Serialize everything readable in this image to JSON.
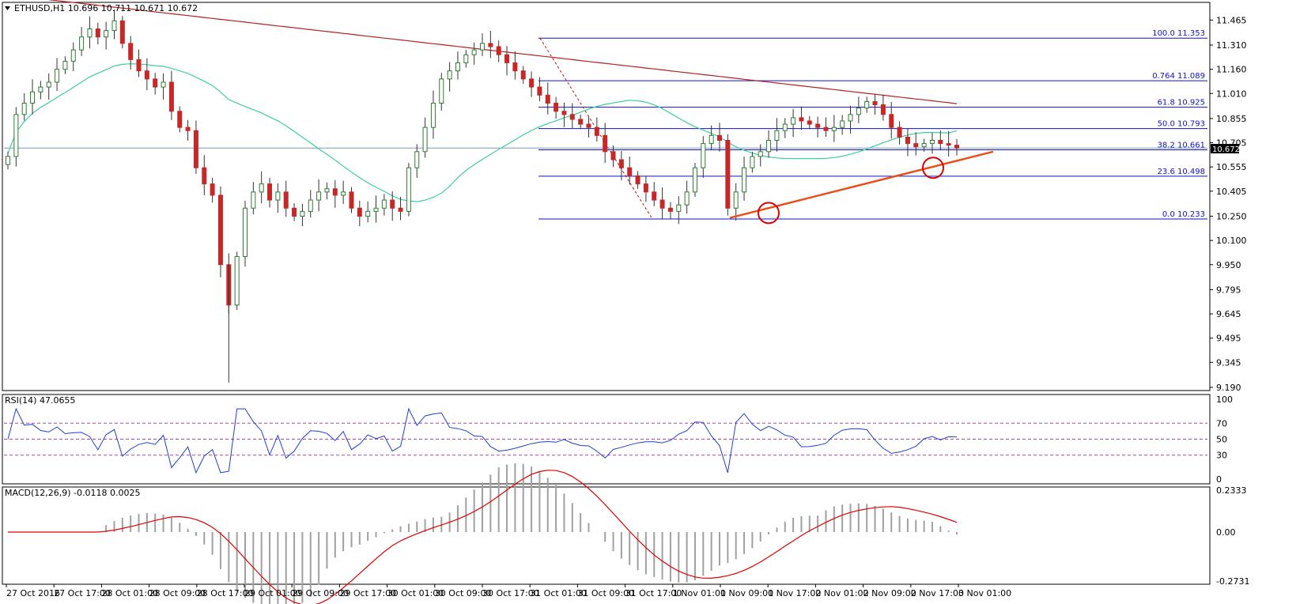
{
  "main": {
    "title": "ETHUSD,H1  10.696 10.711 10.671 10.672",
    "yticks": [
      "11.465",
      "11.310",
      "11.160",
      "11.010",
      "10.855",
      "10.705",
      "10.555",
      "10.405",
      "10.250",
      "10.100",
      "9.950",
      "9.795",
      "9.645",
      "9.495",
      "9.345",
      "9.190"
    ],
    "last_price": "10.672",
    "fib_levels": [
      {
        "label": "100.0",
        "value": "11.353"
      },
      {
        "label": "0.764",
        "value": "11.089"
      },
      {
        "label": "61.8",
        "value": "10.925"
      },
      {
        "label": "50.0",
        "value": "10.793"
      },
      {
        "label": "38.2",
        "value": "10.661"
      },
      {
        "label": "23.6",
        "value": "10.498"
      },
      {
        "label": "0.0",
        "value": "10.233"
      }
    ]
  },
  "rsi": {
    "title": "RSI(14) 47.0655",
    "yticks": [
      "100",
      "70",
      "50",
      "30",
      "0"
    ]
  },
  "macd": {
    "title": "MACD(12,26,9) -0.0118 0.0025",
    "yticks": [
      "0.2333",
      "0.00",
      "-0.2731"
    ]
  },
  "xaxis": {
    "labels": [
      "27 Oct 2016",
      "27 Oct 17:00",
      "28 Oct 01:00",
      "28 Oct 09:00",
      "28 Oct 17:00",
      "29 Oct 01:00",
      "29 Oct 09:00",
      "29 Oct 17:00",
      "30 Oct 01:00",
      "30 Oct 09:00",
      "30 Oct 17:00",
      "31 Oct 01:00",
      "31 Oct 09:00",
      "31 Oct 17:00",
      "1 Nov 01:00",
      "1 Nov 09:00",
      "1 Nov 17:00",
      "2 Nov 01:00",
      "2 Nov 09:00",
      "2 Nov 17:00",
      "3 Nov 01:00"
    ]
  },
  "colors": {
    "bull": "#2e7d32",
    "bear": "#c62828",
    "ma_fast": "#3ecf9a",
    "ma_slow": "#b22222",
    "fib": "#1010c8",
    "trendline": "#e8501a",
    "rsi": "#1f3fd1",
    "macd_signal": "#e00000",
    "macd_hist": "#a0a0a0"
  },
  "chart_data": {
    "type": "candlestick",
    "symbol": "ETHUSD",
    "timeframe": "H1",
    "ylim": [
      9.19,
      11.54
    ],
    "series_close": [
      10.62,
      10.88,
      10.95,
      11.02,
      11.05,
      11.08,
      11.16,
      11.21,
      11.28,
      11.36,
      11.41,
      11.36,
      11.4,
      11.46,
      11.32,
      11.22,
      11.15,
      11.1,
      11.05,
      11.08,
      10.9,
      10.8,
      10.78,
      10.55,
      10.45,
      10.38,
      9.95,
      9.7,
      10.0,
      10.3,
      10.4,
      10.45,
      10.35,
      10.4,
      10.3,
      10.25,
      10.28,
      10.35,
      10.4,
      10.42,
      10.38,
      10.4,
      10.3,
      10.25,
      10.28,
      10.3,
      10.35,
      10.3,
      10.28,
      10.55,
      10.65,
      10.8,
      10.95,
      11.1,
      11.15,
      11.2,
      11.25,
      11.28,
      11.32,
      11.3,
      11.25,
      11.2,
      11.15,
      11.1,
      11.05,
      11.0,
      10.95,
      10.9,
      10.88,
      10.85,
      10.82,
      10.8,
      10.75,
      10.65,
      10.6,
      10.55,
      10.5,
      10.45,
      10.4,
      10.35,
      10.3,
      10.28,
      10.32,
      10.4,
      10.55,
      10.7,
      10.75,
      10.72,
      10.3,
      10.4,
      10.55,
      10.62,
      10.65,
      10.72,
      10.78,
      10.82,
      10.86,
      10.84,
      10.82,
      10.8,
      10.78,
      10.8,
      10.84,
      10.88,
      10.92,
      10.96,
      10.94,
      10.88,
      10.8,
      10.74,
      10.7,
      10.68,
      10.7,
      10.72,
      10.7,
      10.69,
      10.672
    ],
    "fib_retracement": {
      "high": 11.353,
      "low": 10.233
    },
    "rsi": {
      "period": 14,
      "value": 47.0655,
      "levels": [
        70,
        50,
        30
      ]
    },
    "macd": {
      "params": "12,26,9",
      "main": -0.0118,
      "signal": 0.0025
    }
  }
}
